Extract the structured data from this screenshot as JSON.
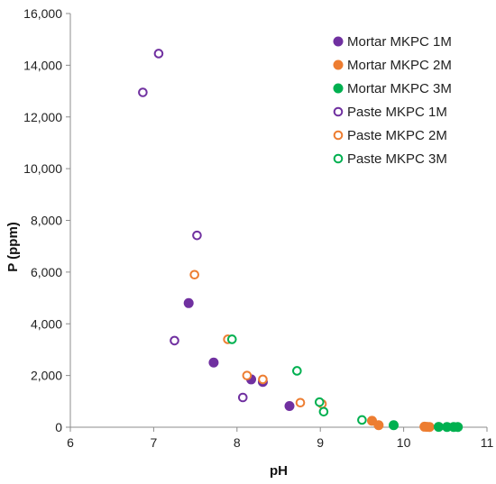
{
  "chart_data": {
    "type": "scatter",
    "xlabel": "pH",
    "ylabel": "P (ppm)",
    "xlim": [
      6,
      11
    ],
    "ylim": [
      0,
      16000
    ],
    "x_ticks": [
      6,
      7,
      8,
      9,
      10,
      11
    ],
    "y_ticks": [
      0,
      2000,
      4000,
      6000,
      8000,
      10000,
      12000,
      14000,
      16000
    ],
    "x_tick_labels": [
      "6",
      "7",
      "8",
      "9",
      "10",
      "11"
    ],
    "y_tick_labels": [
      "0",
      "2,000",
      "4,000",
      "6,000",
      "8,000",
      "10,000",
      "12,000",
      "14,000",
      "16,000"
    ],
    "grid": false,
    "legend_position": "top-right",
    "series": [
      {
        "name": "Mortar MKPC 1M",
        "color": "#7030A0",
        "marker": "filled-circle",
        "points": [
          [
            7.42,
            4800
          ],
          [
            7.72,
            2500
          ],
          [
            8.17,
            1850
          ],
          [
            8.31,
            1750
          ],
          [
            8.63,
            820
          ]
        ]
      },
      {
        "name": "Mortar MKPC 2M",
        "color": "#ED7D31",
        "marker": "filled-circle",
        "points": [
          [
            9.62,
            250
          ],
          [
            9.7,
            80
          ],
          [
            10.25,
            20
          ],
          [
            10.28,
            15
          ],
          [
            10.31,
            10
          ]
        ]
      },
      {
        "name": "Mortar MKPC 3M",
        "color": "#00B050",
        "marker": "filled-circle",
        "points": [
          [
            9.88,
            80
          ],
          [
            10.42,
            15
          ],
          [
            10.52,
            10
          ],
          [
            10.6,
            10
          ],
          [
            10.65,
            8
          ]
        ]
      },
      {
        "name": "Paste MKPC 1M",
        "color": "#7030A0",
        "marker": "hollow-circle",
        "points": [
          [
            6.87,
            12950
          ],
          [
            7.06,
            14450
          ],
          [
            7.25,
            3350
          ],
          [
            7.52,
            7420
          ],
          [
            8.07,
            1150
          ]
        ]
      },
      {
        "name": "Paste MKPC 2M",
        "color": "#ED7D31",
        "marker": "hollow-circle",
        "points": [
          [
            7.49,
            5900
          ],
          [
            7.89,
            3400
          ],
          [
            8.12,
            2000
          ],
          [
            8.31,
            1850
          ],
          [
            8.76,
            950
          ],
          [
            9.02,
            900
          ]
        ]
      },
      {
        "name": "Paste MKPC 3M",
        "color": "#00B050",
        "marker": "hollow-circle",
        "points": [
          [
            7.94,
            3400
          ],
          [
            8.72,
            2180
          ],
          [
            8.99,
            970
          ],
          [
            9.04,
            600
          ],
          [
            9.5,
            280
          ]
        ]
      }
    ]
  }
}
